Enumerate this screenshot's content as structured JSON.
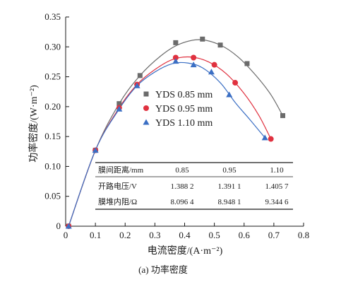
{
  "chart_data": {
    "type": "line",
    "xlabel": "电流密度/(A·m⁻²)",
    "ylabel": "功率密度/(W·m⁻²)",
    "xlim": [
      0,
      0.8
    ],
    "ylim": [
      0,
      0.35
    ],
    "x_ticks": [
      "0",
      "0.1",
      "0.2",
      "0.3",
      "0.4",
      "0.5",
      "0.6",
      "0.7",
      "0.8"
    ],
    "y_ticks": [
      "0",
      "0.05",
      "0.10",
      "0.15",
      "0.20",
      "0.25",
      "0.30",
      "0.35"
    ],
    "grid": false,
    "legend_position": "center",
    "series": [
      {
        "name": "YDS 0.85 mm",
        "marker": "square",
        "color": "#6b6b6b",
        "markers": [
          [
            0.01,
            0.0
          ],
          [
            0.1,
            0.127
          ],
          [
            0.18,
            0.205
          ],
          [
            0.25,
            0.252
          ],
          [
            0.37,
            0.307
          ],
          [
            0.46,
            0.313
          ],
          [
            0.52,
            0.303
          ],
          [
            0.61,
            0.272
          ],
          [
            0.73,
            0.185
          ]
        ],
        "curve": [
          [
            0.01,
            0.0
          ],
          [
            0.1,
            0.127
          ],
          [
            0.18,
            0.205
          ],
          [
            0.25,
            0.252
          ],
          [
            0.32,
            0.285
          ],
          [
            0.38,
            0.304
          ],
          [
            0.45,
            0.312
          ],
          [
            0.52,
            0.303
          ],
          [
            0.58,
            0.283
          ],
          [
            0.64,
            0.252
          ],
          [
            0.69,
            0.22
          ],
          [
            0.73,
            0.185
          ]
        ]
      },
      {
        "name": "YDS 0.95 mm",
        "marker": "circle",
        "color": "#e0313f",
        "markers": [
          [
            0.01,
            0.0
          ],
          [
            0.1,
            0.127
          ],
          [
            0.18,
            0.198
          ],
          [
            0.24,
            0.237
          ],
          [
            0.37,
            0.282
          ],
          [
            0.43,
            0.282
          ],
          [
            0.5,
            0.27
          ],
          [
            0.57,
            0.24
          ],
          [
            0.69,
            0.146
          ]
        ],
        "curve": [
          [
            0.01,
            0.0
          ],
          [
            0.1,
            0.127
          ],
          [
            0.18,
            0.198
          ],
          [
            0.24,
            0.237
          ],
          [
            0.3,
            0.262
          ],
          [
            0.36,
            0.279
          ],
          [
            0.42,
            0.283
          ],
          [
            0.48,
            0.275
          ],
          [
            0.54,
            0.255
          ],
          [
            0.6,
            0.222
          ],
          [
            0.65,
            0.185
          ],
          [
            0.69,
            0.146
          ]
        ]
      },
      {
        "name": "YDS 1.10 mm",
        "marker": "triangle",
        "color": "#3b6fc4",
        "markers": [
          [
            0.01,
            0.0
          ],
          [
            0.1,
            0.127
          ],
          [
            0.18,
            0.196
          ],
          [
            0.24,
            0.235
          ],
          [
            0.37,
            0.276
          ],
          [
            0.43,
            0.27
          ],
          [
            0.49,
            0.258
          ],
          [
            0.55,
            0.22
          ],
          [
            0.67,
            0.148
          ]
        ],
        "curve": [
          [
            0.01,
            0.0
          ],
          [
            0.1,
            0.127
          ],
          [
            0.18,
            0.196
          ],
          [
            0.24,
            0.235
          ],
          [
            0.3,
            0.258
          ],
          [
            0.36,
            0.272
          ],
          [
            0.41,
            0.273
          ],
          [
            0.46,
            0.265
          ],
          [
            0.52,
            0.24
          ],
          [
            0.57,
            0.207
          ],
          [
            0.62,
            0.178
          ],
          [
            0.67,
            0.148
          ]
        ]
      }
    ],
    "table": {
      "rows": [
        [
          "膜间距离/mm",
          "0.85",
          "0.95",
          "1.10"
        ],
        [
          "开路电压/V",
          "1.388 2",
          "1.391 1",
          "1.405 7"
        ],
        [
          "膜堆内阻/Ω",
          "8.096 4",
          "8.948 1",
          "9.344 6"
        ]
      ]
    },
    "caption": "(a) 功率密度"
  }
}
